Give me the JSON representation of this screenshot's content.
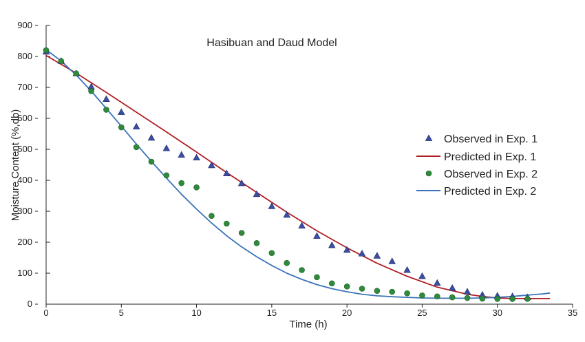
{
  "chart_data": {
    "type": "scatter",
    "title": "Hasibuan and Daud Model",
    "xlabel": "Time (h)",
    "ylabel": "Moisture Content (%,db)",
    "xlim": [
      0,
      35
    ],
    "ylim": [
      0,
      900
    ],
    "x_ticks": [
      0,
      5,
      10,
      15,
      20,
      25,
      30,
      35
    ],
    "y_ticks": [
      0,
      100,
      200,
      300,
      400,
      500,
      600,
      700,
      800,
      900
    ],
    "grid": false,
    "legend_position": "right",
    "series": [
      {
        "name": "Observed in Exp. 1",
        "kind": "markers",
        "marker": "triangle",
        "color": "#3b4ea3",
        "x": [
          0,
          1,
          2,
          3,
          4,
          5,
          6,
          7,
          8,
          9,
          10,
          11,
          12,
          13,
          14,
          15,
          16,
          17,
          18,
          19,
          20,
          21,
          22,
          23,
          24,
          25,
          26,
          27,
          28,
          29,
          30,
          31,
          32
        ],
        "y": [
          815,
          785,
          745,
          702,
          662,
          620,
          573,
          537,
          503,
          482,
          473,
          448,
          422,
          390,
          355,
          316,
          288,
          253,
          220,
          190,
          175,
          163,
          156,
          138,
          110,
          90,
          68,
          52,
          40,
          30,
          27,
          25,
          22
        ]
      },
      {
        "name": "Predicted in Exp. 1",
        "kind": "line",
        "color": "#b01e23",
        "x": [
          0,
          2,
          4,
          6,
          8,
          10,
          12,
          14,
          16,
          18,
          20,
          22,
          24,
          26,
          28,
          29,
          30,
          31,
          32,
          33.5
        ],
        "y": [
          803,
          746,
          684,
          620,
          556,
          491,
          425,
          361,
          297,
          237,
          182,
          132,
          90,
          55,
          32,
          25,
          20,
          18,
          18,
          18
        ]
      },
      {
        "name": "Observed in Exp. 2",
        "kind": "markers",
        "marker": "circle",
        "color": "#2f8a3c",
        "x": [
          0,
          1,
          2,
          3,
          4,
          5,
          6,
          7,
          8,
          9,
          10,
          11,
          12,
          13,
          14,
          15,
          16,
          17,
          18,
          19,
          20,
          21,
          22,
          23,
          24,
          25,
          26,
          27,
          28,
          29,
          30,
          31,
          32
        ],
        "y": [
          820,
          785,
          745,
          688,
          628,
          571,
          507,
          460,
          416,
          391,
          377,
          285,
          260,
          230,
          197,
          165,
          133,
          110,
          87,
          67,
          57,
          50,
          43,
          40,
          35,
          28,
          25,
          22,
          20,
          18,
          17,
          17,
          17
        ]
      },
      {
        "name": "Predicted in Exp. 2",
        "kind": "line",
        "color": "#3a72b8",
        "x": [
          0,
          1,
          2,
          3,
          4,
          5,
          6,
          7,
          8,
          9,
          10,
          11,
          12,
          13,
          14,
          15,
          16,
          17,
          18,
          19,
          20,
          21,
          22,
          23,
          24,
          25,
          26,
          27,
          28,
          29,
          30,
          31,
          32,
          33,
          33.5
        ],
        "y": [
          822,
          785,
          740,
          688,
          632,
          575,
          517,
          461,
          407,
          355,
          307,
          262,
          221,
          185,
          153,
          125,
          100,
          80,
          63,
          50,
          40,
          32,
          27,
          24,
          22,
          20,
          19,
          19,
          19,
          20,
          22,
          25,
          29,
          33,
          36
        ]
      }
    ]
  }
}
